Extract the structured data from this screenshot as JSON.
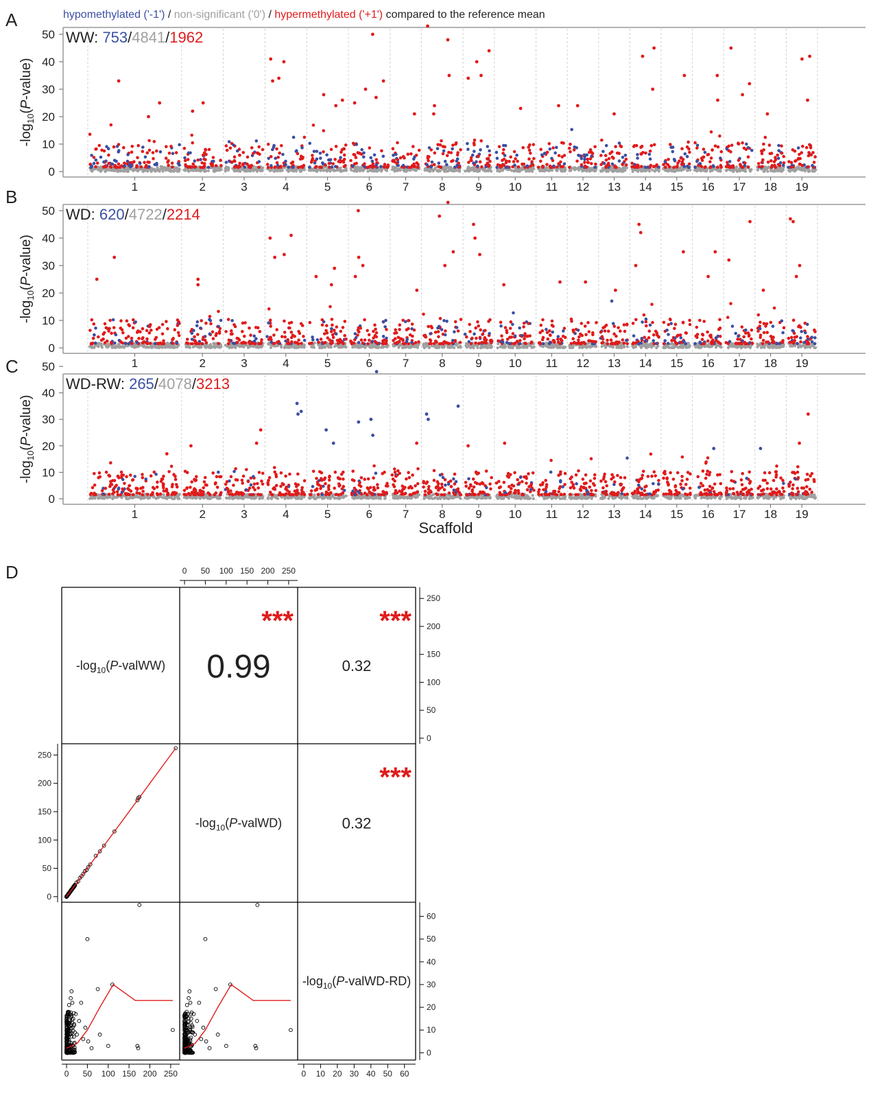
{
  "legend": {
    "hypo": "hypomethylated ('-1')",
    "sep1": " / ",
    "nonsig": "non-significant ('0')",
    "sep2": " / ",
    "hyper": "hypermethylated ('+1')",
    "suffix": " compared to the reference mean"
  },
  "colors": {
    "hypo": "#3a4fa3",
    "nonsig": "#a0a0a0",
    "hyper": "#e01b1b",
    "fit": "#e01b1b",
    "frame": "#999999",
    "text": "#222222"
  },
  "manhattan": {
    "ylabel_prefix": "-log",
    "ylabel_sub": "10",
    "ylabel_open": "(",
    "ylabel_italic": "P",
    "ylabel_suffix": "-value)",
    "xlabel": "Scaffold",
    "yticks": [
      0,
      10,
      20,
      30,
      40,
      50
    ],
    "ylim": [
      0,
      55
    ],
    "scaffolds": [
      "1",
      "2",
      "3",
      "4",
      "5",
      "6",
      "7",
      "8",
      "9",
      "10",
      "11",
      "12",
      "13",
      "14",
      "15",
      "16",
      "17",
      "18",
      "19"
    ]
  },
  "panels": [
    {
      "letter": "A",
      "name": "WW",
      "hypo_n": "753",
      "nonsig_n": "4841",
      "hyper_n": "1962"
    },
    {
      "letter": "B",
      "name": "WD",
      "hypo_n": "620",
      "nonsig_n": "4722",
      "hyper_n": "2214"
    },
    {
      "letter": "C",
      "name": "WD-RW",
      "hypo_n": "265",
      "nonsig_n": "4078",
      "hyper_n": "3213"
    }
  ],
  "chart_data": [
    {
      "type": "scatter",
      "title": "",
      "panel": "A",
      "xlabel": "Scaffold",
      "ylabel": "-log10(P-value)",
      "ylim": [
        0,
        55
      ],
      "grid": "vertical dashed lines between scaffolds",
      "counts": {
        "hypomethylated": 753,
        "non_significant": 4841,
        "hypermethylated": 1962
      },
      "notable_peaks": [
        {
          "scaffold": "1",
          "y": 33
        },
        {
          "scaffold": "1",
          "y": 25
        },
        {
          "scaffold": "1",
          "y": 20
        },
        {
          "scaffold": "2",
          "y": 25
        },
        {
          "scaffold": "2",
          "y": 22
        },
        {
          "scaffold": "4",
          "y": 40
        },
        {
          "scaffold": "4",
          "y": 41
        },
        {
          "scaffold": "4",
          "y": 34
        },
        {
          "scaffold": "4",
          "y": 33
        },
        {
          "scaffold": "5",
          "y": 28
        },
        {
          "scaffold": "5",
          "y": 24
        },
        {
          "scaffold": "5",
          "y": 26
        },
        {
          "scaffold": "6",
          "y": 50
        },
        {
          "scaffold": "6",
          "y": 33
        },
        {
          "scaffold": "6",
          "y": 30
        },
        {
          "scaffold": "6",
          "y": 27
        },
        {
          "scaffold": "6",
          "y": 25
        },
        {
          "scaffold": "7",
          "y": 21
        },
        {
          "scaffold": "8",
          "y": 53
        },
        {
          "scaffold": "8",
          "y": 48
        },
        {
          "scaffold": "8",
          "y": 35
        },
        {
          "scaffold": "8",
          "y": 24
        },
        {
          "scaffold": "8",
          "y": 21
        },
        {
          "scaffold": "9",
          "y": 44
        },
        {
          "scaffold": "9",
          "y": 40
        },
        {
          "scaffold": "9",
          "y": 35
        },
        {
          "scaffold": "9",
          "y": 34
        },
        {
          "scaffold": "10",
          "y": 23
        },
        {
          "scaffold": "11",
          "y": 24
        },
        {
          "scaffold": "12",
          "y": 24
        },
        {
          "scaffold": "13",
          "y": 21
        },
        {
          "scaffold": "14",
          "y": 45
        },
        {
          "scaffold": "14",
          "y": 42
        },
        {
          "scaffold": "14",
          "y": 30
        },
        {
          "scaffold": "15",
          "y": 35
        },
        {
          "scaffold": "16",
          "y": 35
        },
        {
          "scaffold": "16",
          "y": 26
        },
        {
          "scaffold": "17",
          "y": 45
        },
        {
          "scaffold": "17",
          "y": 32
        },
        {
          "scaffold": "17",
          "y": 28
        },
        {
          "scaffold": "18",
          "y": 21
        },
        {
          "scaffold": "19",
          "y": 42
        },
        {
          "scaffold": "19",
          "y": 41
        },
        {
          "scaffold": "19",
          "y": 26
        }
      ]
    },
    {
      "type": "scatter",
      "title": "",
      "panel": "B",
      "xlabel": "Scaffold",
      "ylabel": "-log10(P-value)",
      "ylim": [
        0,
        55
      ],
      "grid": "vertical dashed lines between scaffolds",
      "counts": {
        "hypomethylated": 620,
        "non_significant": 4722,
        "hypermethylated": 2214
      },
      "notable_peaks": [
        {
          "scaffold": "1",
          "y": 33
        },
        {
          "scaffold": "1",
          "y": 25
        },
        {
          "scaffold": "2",
          "y": 25
        },
        {
          "scaffold": "2",
          "y": 23
        },
        {
          "scaffold": "4",
          "y": 40
        },
        {
          "scaffold": "4",
          "y": 41
        },
        {
          "scaffold": "4",
          "y": 34
        },
        {
          "scaffold": "4",
          "y": 33
        },
        {
          "scaffold": "5",
          "y": 29
        },
        {
          "scaffold": "5",
          "y": 23
        },
        {
          "scaffold": "5",
          "y": 26
        },
        {
          "scaffold": "6",
          "y": 50
        },
        {
          "scaffold": "6",
          "y": 33
        },
        {
          "scaffold": "6",
          "y": 30
        },
        {
          "scaffold": "6",
          "y": 26
        },
        {
          "scaffold": "7",
          "y": 21
        },
        {
          "scaffold": "8",
          "y": 53
        },
        {
          "scaffold": "8",
          "y": 48
        },
        {
          "scaffold": "8",
          "y": 35
        },
        {
          "scaffold": "8",
          "y": 30
        },
        {
          "scaffold": "9",
          "y": 45
        },
        {
          "scaffold": "9",
          "y": 40
        },
        {
          "scaffold": "9",
          "y": 34
        },
        {
          "scaffold": "10",
          "y": 23
        },
        {
          "scaffold": "11",
          "y": 24
        },
        {
          "scaffold": "12",
          "y": 24
        },
        {
          "scaffold": "13",
          "y": 21
        },
        {
          "scaffold": "14",
          "y": 45
        },
        {
          "scaffold": "14",
          "y": 42
        },
        {
          "scaffold": "14",
          "y": 30
        },
        {
          "scaffold": "15",
          "y": 35
        },
        {
          "scaffold": "16",
          "y": 35
        },
        {
          "scaffold": "16",
          "y": 26
        },
        {
          "scaffold": "17",
          "y": 46
        },
        {
          "scaffold": "17",
          "y": 32
        },
        {
          "scaffold": "18",
          "y": 21
        },
        {
          "scaffold": "19",
          "y": 47
        },
        {
          "scaffold": "19",
          "y": 46
        },
        {
          "scaffold": "19",
          "y": 30
        },
        {
          "scaffold": "19",
          "y": 26
        }
      ]
    },
    {
      "type": "scatter",
      "title": "",
      "panel": "C",
      "xlabel": "Scaffold",
      "ylabel": "-log10(P-value)",
      "ylim": [
        0,
        55
      ],
      "grid": "vertical dashed lines between scaffolds",
      "counts": {
        "hypomethylated": 265,
        "non_significant": 4078,
        "hypermethylated": 3213
      },
      "notable_peaks": [
        {
          "scaffold": "1",
          "y": 17
        },
        {
          "scaffold": "2",
          "y": 20
        },
        {
          "scaffold": "3",
          "y": 26
        },
        {
          "scaffold": "3",
          "y": 21
        },
        {
          "scaffold": "4",
          "y": 36,
          "class": "hypo"
        },
        {
          "scaffold": "4",
          "y": 33,
          "class": "hypo"
        },
        {
          "scaffold": "4",
          "y": 32,
          "class": "hypo"
        },
        {
          "scaffold": "5",
          "y": 26,
          "class": "hypo"
        },
        {
          "scaffold": "5",
          "y": 21,
          "class": "hypo"
        },
        {
          "scaffold": "6",
          "y": 48,
          "class": "hypo"
        },
        {
          "scaffold": "6",
          "y": 30,
          "class": "hypo"
        },
        {
          "scaffold": "6",
          "y": 29,
          "class": "hypo"
        },
        {
          "scaffold": "6",
          "y": 24,
          "class": "hypo"
        },
        {
          "scaffold": "7",
          "y": 21
        },
        {
          "scaffold": "8",
          "y": 35,
          "class": "hypo"
        },
        {
          "scaffold": "8",
          "y": 32,
          "class": "hypo"
        },
        {
          "scaffold": "8",
          "y": 30,
          "class": "hypo"
        },
        {
          "scaffold": "9",
          "y": 20
        },
        {
          "scaffold": "10",
          "y": 21
        },
        {
          "scaffold": "16",
          "y": 19,
          "class": "hypo"
        },
        {
          "scaffold": "18",
          "y": 19,
          "class": "hypo"
        },
        {
          "scaffold": "19",
          "y": 32
        },
        {
          "scaffold": "19",
          "y": 21
        }
      ]
    },
    {
      "type": "scatter-matrix",
      "title": "",
      "panel": "D",
      "variables": [
        "WW",
        "WD",
        "WD-RD"
      ],
      "diag": {
        "prefix": "-log",
        "sub": "10",
        "open": "(",
        "italic": "P",
        "labels": [
          "-valWW)",
          "-valWD)",
          "-valWD-RD)"
        ]
      },
      "correlations": [
        {
          "pair": [
            "WW",
            "WD"
          ],
          "r": "0.99",
          "stars": "***"
        },
        {
          "pair": [
            "WW",
            "WD-RD"
          ],
          "r": "0.32",
          "stars": "***"
        },
        {
          "pair": [
            "WD",
            "WD-RD"
          ],
          "r": "0.32",
          "stars": "***"
        }
      ],
      "axes": {
        "wide_ticks": [
          0,
          50,
          100,
          150,
          200,
          250
        ],
        "wide_lim": [
          -5,
          265
        ],
        "narrow_ticks": [
          0,
          10,
          20,
          30,
          40,
          50,
          60
        ],
        "narrow_lim": [
          -2,
          65
        ]
      },
      "panel_ww_wd": {
        "points": [
          [
            0,
            0
          ],
          [
            2,
            2
          ],
          [
            4,
            5
          ],
          [
            6,
            6
          ],
          [
            8,
            8
          ],
          [
            10,
            11
          ],
          [
            13,
            13
          ],
          [
            16,
            17
          ],
          [
            20,
            20
          ],
          [
            24,
            25
          ],
          [
            28,
            27
          ],
          [
            32,
            33
          ],
          [
            36,
            36
          ],
          [
            40,
            40
          ],
          [
            44,
            45
          ],
          [
            48,
            47
          ],
          [
            52,
            52
          ],
          [
            57,
            57
          ],
          [
            70,
            72
          ],
          [
            80,
            80
          ],
          [
            90,
            90
          ],
          [
            115,
            115
          ],
          [
            170,
            170
          ],
          [
            172,
            174
          ],
          [
            175,
            176
          ],
          [
            262,
            262
          ]
        ],
        "fit": [
          [
            0,
            0
          ],
          [
            262,
            262
          ]
        ]
      },
      "panel_ww_wdrd": {
        "points": [
          [
            1,
            2
          ],
          [
            2,
            6
          ],
          [
            3,
            10
          ],
          [
            4,
            13
          ],
          [
            5,
            18
          ],
          [
            6,
            21
          ],
          [
            8,
            17
          ],
          [
            10,
            24
          ],
          [
            12,
            27
          ],
          [
            14,
            22
          ],
          [
            16,
            15
          ],
          [
            18,
            12
          ],
          [
            20,
            9
          ],
          [
            22,
            17
          ],
          [
            25,
            8
          ],
          [
            30,
            14
          ],
          [
            35,
            22
          ],
          [
            40,
            6
          ],
          [
            45,
            11
          ],
          [
            50,
            50
          ],
          [
            52,
            5
          ],
          [
            60,
            2
          ],
          [
            75,
            28
          ],
          [
            80,
            8
          ],
          [
            100,
            3
          ],
          [
            110,
            30
          ],
          [
            170,
            3
          ],
          [
            172,
            2
          ],
          [
            175,
            65
          ],
          [
            255,
            10
          ]
        ],
        "fit": [
          [
            0,
            2
          ],
          [
            25,
            4
          ],
          [
            50,
            10
          ],
          [
            80,
            20
          ],
          [
            112,
            30
          ],
          [
            165,
            23
          ],
          [
            255,
            23
          ]
        ]
      },
      "panel_wd_wdrd": {
        "points": [
          [
            1,
            2
          ],
          [
            2,
            6
          ],
          [
            3,
            10
          ],
          [
            4,
            13
          ],
          [
            5,
            18
          ],
          [
            6,
            21
          ],
          [
            8,
            17
          ],
          [
            10,
            24
          ],
          [
            12,
            27
          ],
          [
            14,
            22
          ],
          [
            16,
            15
          ],
          [
            18,
            12
          ],
          [
            20,
            9
          ],
          [
            22,
            17
          ],
          [
            25,
            8
          ],
          [
            30,
            14
          ],
          [
            35,
            22
          ],
          [
            40,
            6
          ],
          [
            45,
            11
          ],
          [
            50,
            50
          ],
          [
            52,
            5
          ],
          [
            60,
            2
          ],
          [
            75,
            28
          ],
          [
            80,
            8
          ],
          [
            100,
            3
          ],
          [
            110,
            30
          ],
          [
            170,
            3
          ],
          [
            172,
            2
          ],
          [
            175,
            65
          ],
          [
            255,
            10
          ]
        ],
        "fit": [
          [
            0,
            2
          ],
          [
            25,
            4
          ],
          [
            50,
            10
          ],
          [
            80,
            20
          ],
          [
            112,
            30
          ],
          [
            165,
            23
          ],
          [
            255,
            23
          ]
        ]
      }
    }
  ]
}
